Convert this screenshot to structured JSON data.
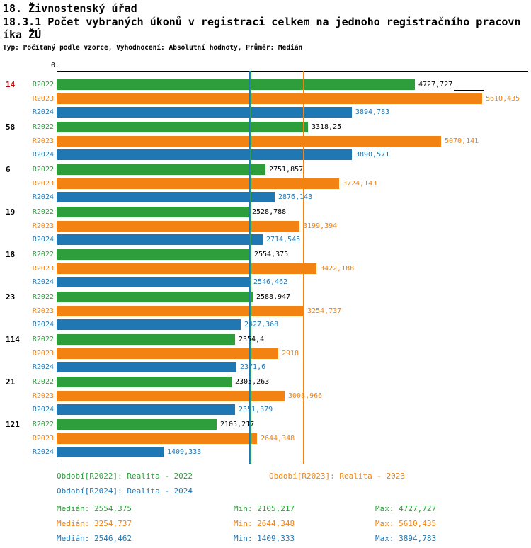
{
  "header": {
    "title": "18. Živnostenský úřad",
    "subtitle": "18.3.1 Počet vybraných úkonů v registraci celkem na jednoho registračního pracovníka ŽÚ",
    "meta": "Typ: Počítaný podle vzorce, Vyhodnocení: Absolutní hodnoty, Průměr: Medián"
  },
  "colors": {
    "green": "#2e9e3c",
    "orange": "#f28211",
    "blue": "#1f77b4",
    "red": "#cc0000",
    "axis": "#000000",
    "r2022_value_text": "#000000",
    "background": "#ffffff"
  },
  "chart_data": {
    "type": "bar",
    "orientation": "horizontal",
    "title": "18.3.1 Počet vybraných úkonů v registraci celkem na jednoho registračního pracovníka ŽÚ",
    "origin_tick_label": "0",
    "xlim": [
      0,
      6200
    ],
    "grid": false,
    "legend_position": "bottom",
    "series": [
      {
        "name": "R2022",
        "color_key": "green",
        "period_label": "Realita - 2022"
      },
      {
        "name": "R2023",
        "color_key": "orange",
        "period_label": "Realita - 2023"
      },
      {
        "name": "R2024",
        "color_key": "blue",
        "period_label": "Realita - 2024"
      }
    ],
    "groups": [
      {
        "label": "14",
        "highlight": true,
        "bars": [
          {
            "series": "R2022",
            "value": 4727.727,
            "value_label": "4727,727"
          },
          {
            "series": "R2023",
            "value": 5610.435,
            "value_label": "5610,435"
          },
          {
            "series": "R2024",
            "value": 3894.783,
            "value_label": "3894,783"
          }
        ]
      },
      {
        "label": "58",
        "highlight": false,
        "bars": [
          {
            "series": "R2022",
            "value": 3318.25,
            "value_label": "3318,25"
          },
          {
            "series": "R2023",
            "value": 5070.141,
            "value_label": "5070,141"
          },
          {
            "series": "R2024",
            "value": 3890.571,
            "value_label": "3890,571"
          }
        ]
      },
      {
        "label": "6",
        "highlight": false,
        "bars": [
          {
            "series": "R2022",
            "value": 2751.857,
            "value_label": "2751,857"
          },
          {
            "series": "R2023",
            "value": 3724.143,
            "value_label": "3724,143"
          },
          {
            "series": "R2024",
            "value": 2876.143,
            "value_label": "2876,143"
          }
        ]
      },
      {
        "label": "19",
        "highlight": false,
        "bars": [
          {
            "series": "R2022",
            "value": 2528.788,
            "value_label": "2528,788"
          },
          {
            "series": "R2023",
            "value": 3199.394,
            "value_label": "3199,394"
          },
          {
            "series": "R2024",
            "value": 2714.545,
            "value_label": "2714,545"
          }
        ]
      },
      {
        "label": "18",
        "highlight": false,
        "bars": [
          {
            "series": "R2022",
            "value": 2554.375,
            "value_label": "2554,375"
          },
          {
            "series": "R2023",
            "value": 3422.188,
            "value_label": "3422,188"
          },
          {
            "series": "R2024",
            "value": 2546.462,
            "value_label": "2546,462"
          }
        ]
      },
      {
        "label": "23",
        "highlight": false,
        "bars": [
          {
            "series": "R2022",
            "value": 2588.947,
            "value_label": "2588,947"
          },
          {
            "series": "R2023",
            "value": 3254.737,
            "value_label": "3254,737"
          },
          {
            "series": "R2024",
            "value": 2427.368,
            "value_label": "2427,368"
          }
        ]
      },
      {
        "label": "114",
        "highlight": false,
        "bars": [
          {
            "series": "R2022",
            "value": 2354.4,
            "value_label": "2354,4"
          },
          {
            "series": "R2023",
            "value": 2918,
            "value_label": "2918"
          },
          {
            "series": "R2024",
            "value": 2371.6,
            "value_label": "2371,6"
          }
        ]
      },
      {
        "label": "21",
        "highlight": false,
        "bars": [
          {
            "series": "R2022",
            "value": 2305.263,
            "value_label": "2305,263"
          },
          {
            "series": "R2023",
            "value": 3008.966,
            "value_label": "3008,966"
          },
          {
            "series": "R2024",
            "value": 2351.379,
            "value_label": "2351,379"
          }
        ]
      },
      {
        "label": "121",
        "highlight": false,
        "bars": [
          {
            "series": "R2022",
            "value": 2105.217,
            "value_label": "2105,217"
          },
          {
            "series": "R2023",
            "value": 2644.348,
            "value_label": "2644,348"
          },
          {
            "series": "R2024",
            "value": 1409.333,
            "value_label": "1409,333"
          }
        ]
      }
    ],
    "median_lines": [
      {
        "series": "R2024",
        "value": 2546.462,
        "color_key": "blue"
      },
      {
        "series": "R2022",
        "value": 2554.375,
        "color_key": "green"
      },
      {
        "series": "R2023",
        "value": 3254.737,
        "color_key": "orange"
      }
    ]
  },
  "legend": {
    "items": [
      {
        "series": "R2022",
        "text": "Období[R2022]: Realita - 2022"
      },
      {
        "series": "R2023",
        "text": "Období[R2023]: Realita - 2023"
      },
      {
        "series": "R2024",
        "text": "Období[R2024]: Realita - 2024"
      }
    ]
  },
  "stats": {
    "rows": [
      {
        "series": "R2022",
        "median": "Medián: 2554,375",
        "min": "Min: 2105,217",
        "max": "Max: 4727,727"
      },
      {
        "series": "R2023",
        "median": "Medián: 3254,737",
        "min": "Min: 2644,348",
        "max": "Max: 5610,435"
      },
      {
        "series": "R2024",
        "median": "Medián: 2546,462",
        "min": "Min: 1409,333",
        "max": "Max: 3894,783"
      }
    ]
  }
}
